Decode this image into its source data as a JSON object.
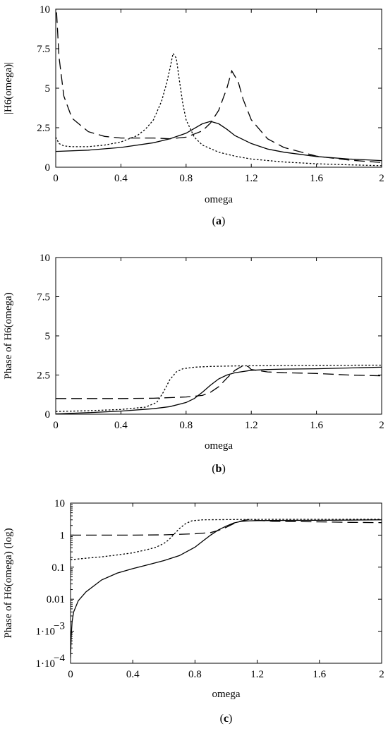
{
  "chart_data": [
    {
      "type": "line",
      "panel": "a",
      "caption": "(a)",
      "xlabel": "omega",
      "ylabel": "|H6(omega)|",
      "xlim": [
        0,
        2
      ],
      "ylim": [
        0,
        10
      ],
      "yscale": "linear",
      "x_ticks": [
        "0",
        "0.4",
        "0.8",
        "1.2",
        "1.6",
        "2"
      ],
      "y_ticks": [
        "0",
        "2.5",
        "5",
        "7.5",
        "10"
      ],
      "grid": false,
      "series": [
        {
          "style": "solid",
          "x": [
            0,
            0.2,
            0.4,
            0.6,
            0.7,
            0.8,
            0.85,
            0.9,
            0.95,
            1.0,
            1.05,
            1.1,
            1.2,
            1.3,
            1.4,
            1.6,
            1.8,
            2.0
          ],
          "y": [
            1.0,
            1.08,
            1.25,
            1.55,
            1.8,
            2.15,
            2.45,
            2.75,
            2.9,
            2.75,
            2.4,
            2.0,
            1.5,
            1.15,
            0.95,
            0.68,
            0.52,
            0.42
          ]
        },
        {
          "style": "dashed",
          "x": [
            0.005,
            0.02,
            0.05,
            0.1,
            0.2,
            0.3,
            0.4,
            0.5,
            0.6,
            0.7,
            0.8,
            0.9,
            0.95,
            1.0,
            1.05,
            1.08,
            1.12,
            1.15,
            1.2,
            1.3,
            1.4,
            1.6,
            1.8,
            2.0
          ],
          "y": [
            9.8,
            7.0,
            4.5,
            3.1,
            2.25,
            1.95,
            1.85,
            1.85,
            1.85,
            1.8,
            1.9,
            2.3,
            2.8,
            3.6,
            5.0,
            6.1,
            5.4,
            4.3,
            3.0,
            1.8,
            1.25,
            0.7,
            0.45,
            0.3
          ]
        },
        {
          "style": "dotted",
          "x": [
            0,
            0.02,
            0.05,
            0.1,
            0.2,
            0.3,
            0.4,
            0.5,
            0.55,
            0.6,
            0.65,
            0.68,
            0.7,
            0.72,
            0.74,
            0.76,
            0.78,
            0.8,
            0.85,
            0.9,
            1.0,
            1.1,
            1.2,
            1.4,
            1.6,
            1.8,
            2.0
          ],
          "y": [
            1.9,
            1.5,
            1.35,
            1.3,
            1.3,
            1.4,
            1.6,
            2.0,
            2.4,
            3.0,
            4.2,
            5.3,
            6.2,
            7.2,
            6.9,
            5.4,
            4.0,
            3.0,
            1.9,
            1.4,
            0.95,
            0.7,
            0.52,
            0.33,
            0.22,
            0.15,
            0.1
          ]
        }
      ]
    },
    {
      "type": "line",
      "panel": "b",
      "caption": "(b)",
      "xlabel": "omega",
      "ylabel": "Phase of H6(omega)",
      "xlim": [
        0,
        2
      ],
      "ylim": [
        0,
        10
      ],
      "yscale": "linear",
      "x_ticks": [
        "0",
        "0.4",
        "0.8",
        "1.2",
        "1.6",
        "2"
      ],
      "y_ticks": [
        "0",
        "2.5",
        "5",
        "7.5",
        "10"
      ],
      "grid": false,
      "series": [
        {
          "style": "solid",
          "x": [
            0,
            0.2,
            0.4,
            0.6,
            0.7,
            0.8,
            0.85,
            0.9,
            0.95,
            1.0,
            1.05,
            1.1,
            1.2,
            1.3,
            1.4,
            1.6,
            1.8,
            2.0
          ],
          "y": [
            0.02,
            0.1,
            0.2,
            0.35,
            0.48,
            0.75,
            1.0,
            1.4,
            1.85,
            2.25,
            2.5,
            2.65,
            2.8,
            2.85,
            2.88,
            2.9,
            2.95,
            3.0
          ]
        },
        {
          "style": "dashed",
          "x": [
            0,
            0.2,
            0.4,
            0.6,
            0.8,
            0.9,
            0.95,
            1.0,
            1.05,
            1.1,
            1.15,
            1.18,
            1.2,
            1.3,
            1.4,
            1.6,
            1.8,
            2.0
          ],
          "y": [
            1.0,
            1.0,
            1.0,
            1.02,
            1.1,
            1.2,
            1.4,
            1.75,
            2.3,
            2.8,
            3.1,
            3.05,
            2.85,
            2.7,
            2.65,
            2.6,
            2.5,
            2.45
          ]
        },
        {
          "style": "dotted",
          "x": [
            0,
            0.2,
            0.4,
            0.55,
            0.62,
            0.66,
            0.7,
            0.74,
            0.78,
            0.85,
            0.95,
            1.1,
            1.3,
            1.6,
            2.0
          ],
          "y": [
            0.17,
            0.22,
            0.3,
            0.45,
            0.75,
            1.4,
            2.2,
            2.7,
            2.9,
            3.0,
            3.05,
            3.08,
            3.1,
            3.12,
            3.13
          ]
        }
      ]
    },
    {
      "type": "line",
      "panel": "c",
      "caption": "(c)",
      "xlabel": "omega",
      "ylabel": "Phase of H6(omega) (log)",
      "xlim": [
        0,
        2
      ],
      "ylim": [
        0.0001,
        10
      ],
      "yscale": "log",
      "x_ticks": [
        "0",
        "0.4",
        "0.8",
        "1.2",
        "1.6",
        "2"
      ],
      "y_ticks": [
        {
          "value": 10,
          "mantissa": "10",
          "exp": ""
        },
        {
          "value": 1,
          "mantissa": "1",
          "exp": ""
        },
        {
          "value": 0.1,
          "mantissa": "0.1",
          "exp": ""
        },
        {
          "value": 0.01,
          "mantissa": "0.01",
          "exp": ""
        },
        {
          "value": 0.001,
          "mantissa": "1·10",
          "exp": "−3"
        },
        {
          "value": 0.0001,
          "mantissa": "1·10",
          "exp": "−4"
        }
      ],
      "grid": false,
      "series": [
        {
          "style": "solid",
          "x": [
            0.0,
            0.002,
            0.005,
            0.01,
            0.02,
            0.05,
            0.1,
            0.2,
            0.3,
            0.4,
            0.5,
            0.6,
            0.7,
            0.8,
            0.85,
            0.9,
            0.95,
            1.0,
            1.05,
            1.1,
            1.15,
            1.2,
            1.4,
            1.6,
            1.8,
            2.0
          ],
          "y": [
            0.00015,
            0.0003,
            0.0008,
            0.002,
            0.004,
            0.009,
            0.017,
            0.04,
            0.065,
            0.09,
            0.12,
            0.16,
            0.23,
            0.42,
            0.65,
            1.0,
            1.45,
            1.9,
            2.4,
            2.7,
            2.8,
            2.85,
            2.88,
            2.9,
            2.95,
            3.0
          ]
        },
        {
          "style": "dashed",
          "x": [
            0,
            0.2,
            0.4,
            0.6,
            0.8,
            0.9,
            0.95,
            1.0,
            1.05,
            1.1,
            1.15,
            1.2,
            1.3,
            1.4,
            1.6,
            1.8,
            2.0
          ],
          "y": [
            1.0,
            1.0,
            1.0,
            1.02,
            1.1,
            1.2,
            1.4,
            1.75,
            2.3,
            2.8,
            3.1,
            2.9,
            2.7,
            2.65,
            2.6,
            2.5,
            2.45
          ]
        },
        {
          "style": "dotted",
          "x": [
            0,
            0.05,
            0.1,
            0.2,
            0.3,
            0.4,
            0.5,
            0.55,
            0.6,
            0.63,
            0.66,
            0.7,
            0.74,
            0.78,
            0.85,
            1.0,
            1.2,
            1.6,
            2.0
          ],
          "y": [
            0.17,
            0.18,
            0.19,
            0.21,
            0.24,
            0.28,
            0.36,
            0.42,
            0.55,
            0.7,
            1.0,
            1.6,
            2.3,
            2.8,
            3.0,
            3.05,
            3.1,
            3.12,
            3.13
          ]
        }
      ]
    }
  ]
}
